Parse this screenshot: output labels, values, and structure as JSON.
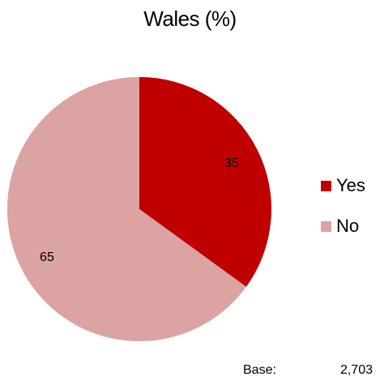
{
  "chart_data": {
    "type": "pie",
    "title": "Wales (%)",
    "categories": [
      "Yes",
      "No"
    ],
    "values": [
      35,
      65
    ],
    "colors": [
      "#c00000",
      "#dca3a3"
    ],
    "legend_position": "right"
  },
  "footer": {
    "base_label": "Base:",
    "base_value": "2,703"
  }
}
